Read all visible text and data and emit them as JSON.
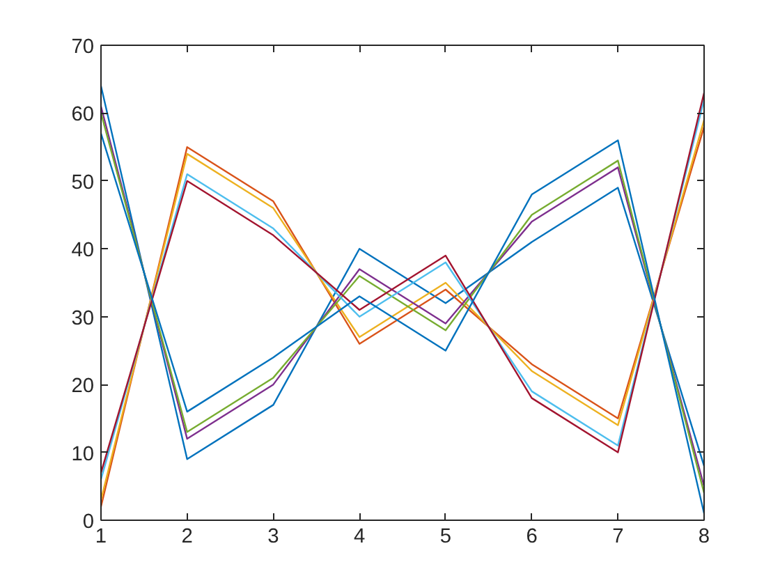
{
  "chart_data": {
    "type": "line",
    "x": [
      1,
      2,
      3,
      4,
      5,
      6,
      7,
      8
    ],
    "xlim": [
      1,
      8
    ],
    "xticks": [
      1,
      2,
      3,
      4,
      5,
      6,
      7,
      8
    ],
    "ylim": [
      0,
      70
    ],
    "yticks": [
      0,
      10,
      20,
      30,
      40,
      50,
      60,
      70
    ],
    "grid": false,
    "series": [
      {
        "color": "#0072bd",
        "values": [
          64,
          9,
          17,
          40,
          32,
          41,
          49,
          8
        ]
      },
      {
        "color": "#d95319",
        "values": [
          2,
          55,
          47,
          26,
          34,
          23,
          15,
          58
        ]
      },
      {
        "color": "#edb120",
        "values": [
          3,
          54,
          46,
          27,
          35,
          22,
          14,
          59
        ]
      },
      {
        "color": "#7e2f8e",
        "values": [
          61,
          12,
          20,
          37,
          29,
          44,
          52,
          5
        ]
      },
      {
        "color": "#77ac30",
        "values": [
          60,
          13,
          21,
          36,
          28,
          45,
          53,
          4
        ]
      },
      {
        "color": "#4dbeee",
        "values": [
          6,
          51,
          43,
          30,
          38,
          19,
          11,
          62
        ]
      },
      {
        "color": "#a2142f",
        "values": [
          7,
          50,
          42,
          31,
          39,
          18,
          10,
          63
        ]
      },
      {
        "color": "#0072bd",
        "values": [
          57,
          16,
          24,
          33,
          25,
          48,
          56,
          1
        ]
      }
    ]
  }
}
